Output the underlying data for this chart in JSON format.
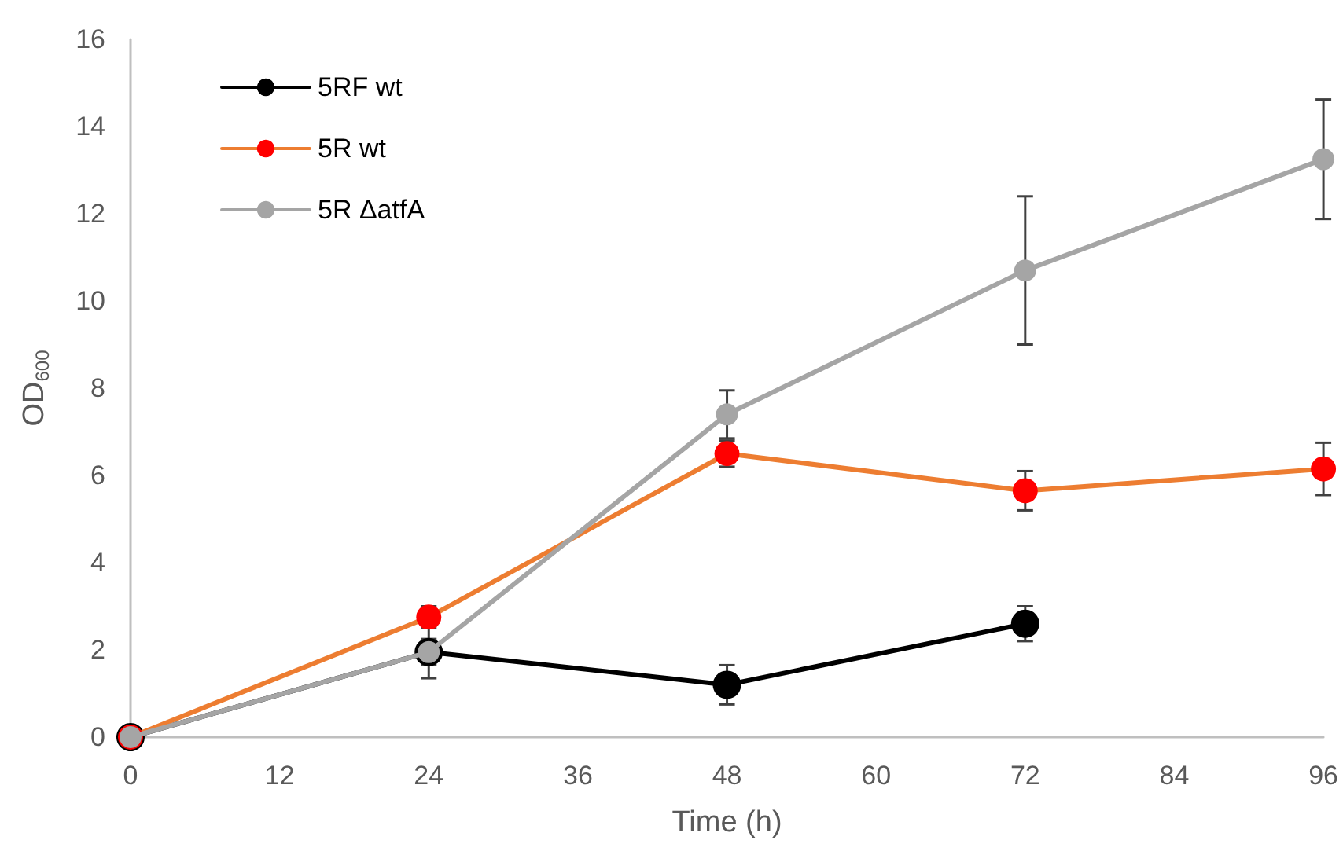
{
  "chart_data": {
    "type": "line",
    "xlabel": "Time (h)",
    "ylabel": "OD$_{600}$",
    "x": [
      0,
      24,
      48,
      72,
      96
    ],
    "series": [
      {
        "name": "5RF wt",
        "color": "#000000",
        "values": [
          0,
          1.95,
          1.2,
          2.6,
          null
        ],
        "errors": [
          null,
          0.3,
          0.45,
          0.4,
          null
        ]
      },
      {
        "name": "5R wt",
        "color": "#ed7d31",
        "colors": [
          "#ff0000",
          "#ff0000",
          "#ff0000",
          "#ff0000",
          "#ff0000"
        ],
        "values": [
          0,
          2.75,
          6.5,
          5.65,
          6.15
        ],
        "errors": [
          null,
          0.25,
          0.3,
          0.45,
          0.6
        ]
      },
      {
        "name": "5R ΔatfA",
        "color": "#a5a5a5",
        "values": [
          0,
          1.95,
          7.4,
          10.7,
          13.25
        ],
        "errors": [
          null,
          0.6,
          0.55,
          1.7,
          1.37
        ]
      }
    ],
    "xlim": [
      0,
      96
    ],
    "xticks": [
      0,
      12,
      24,
      36,
      48,
      60,
      72,
      84,
      96
    ],
    "ylim": [
      0,
      16
    ],
    "yticks": [
      0,
      2,
      4,
      6,
      8,
      10,
      12,
      14,
      16
    ],
    "grid": false,
    "legend": "top left",
    "marker": "circle",
    "line_style": "solid"
  }
}
